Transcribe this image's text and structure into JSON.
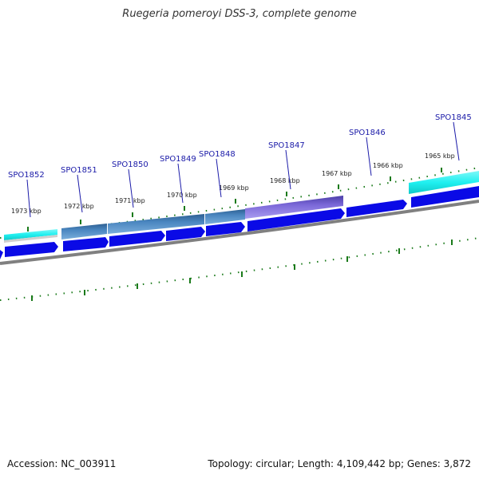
{
  "title": "Ruegeria pomeroyi DSS-3, complete genome",
  "footer": {
    "accession": "Accession: NC_003911",
    "summary": "Topology: circular; Length: 4,109,442 bp; Genes: 3,872"
  },
  "ruler_labels": [
    "1973 kbp",
    "1972 kbp",
    "1971 kbp",
    "1970 kbp",
    "1969 kbp",
    "1968 kbp",
    "1967 kbp",
    "1966 kbp",
    "1965 kbp"
  ],
  "genes": [
    "SPO1852",
    "SPO1851",
    "SPO1850",
    "SPO1849",
    "SPO1848",
    "SPO1847",
    "SPO1846",
    "SPO1845"
  ],
  "colors": {
    "gene_label": "#1a1aa8",
    "cds_arrow": "#0a0ae6",
    "tick": "#1a7a1a",
    "cyan_feature": "#1ff0f0",
    "steel_feature": "#4a86c0",
    "purple_feature": "#7b68d8",
    "backbone": "#808080"
  }
}
